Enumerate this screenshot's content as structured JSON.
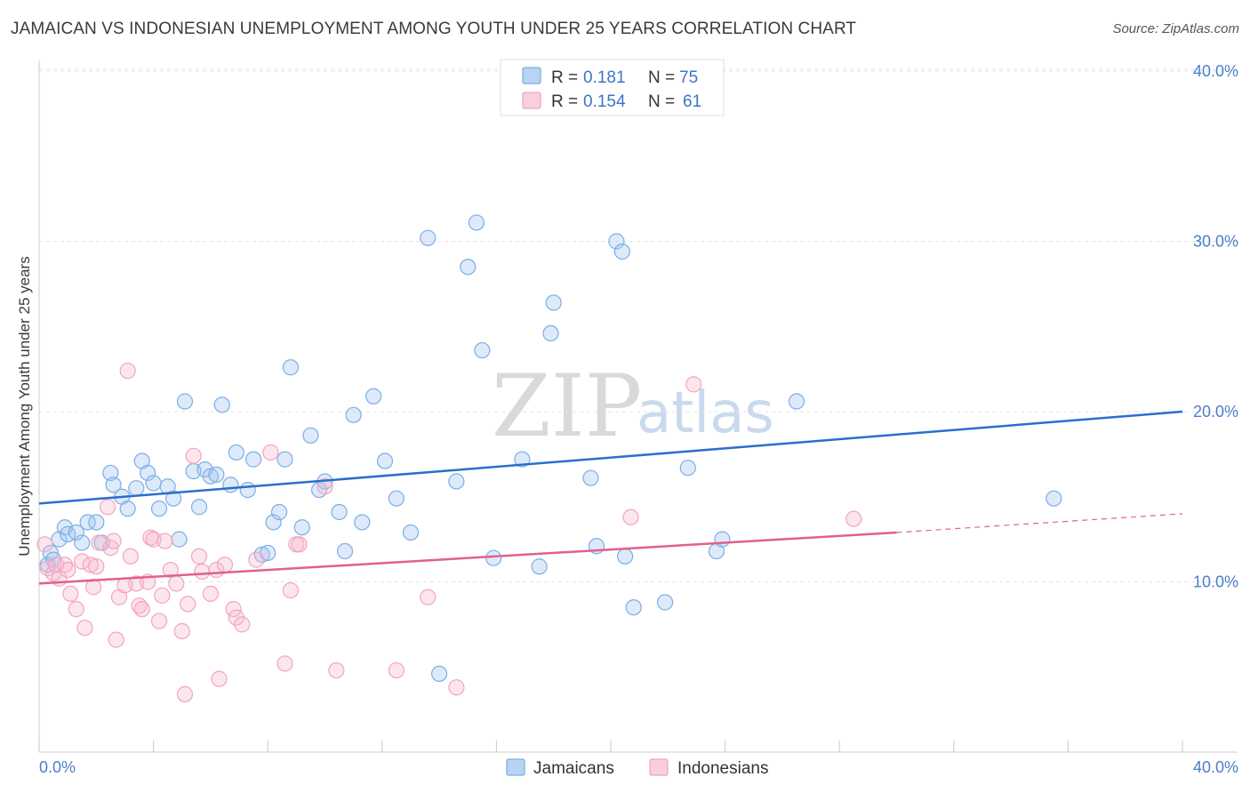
{
  "header": {
    "title": "JAMAICAN VS INDONESIAN UNEMPLOYMENT AMONG YOUTH UNDER 25 YEARS CORRELATION CHART",
    "source": "Source: ZipAtlas.com"
  },
  "watermark": {
    "zip": "ZIP",
    "atlas": "atlas"
  },
  "legend_top": {
    "rows": [
      {
        "r_label": "R =",
        "r_value": "0.181",
        "n_label": "N =",
        "n_value": "75"
      },
      {
        "r_label": "R =",
        "r_value": "0.154",
        "n_label": "N =",
        "n_value": "61"
      }
    ]
  },
  "legend_bottom": {
    "items": [
      "Jamaicans",
      "Indonesians"
    ]
  },
  "chart_data": {
    "type": "scatter",
    "title": "JAMAICAN VS INDONESIAN UNEMPLOYMENT AMONG YOUTH UNDER 25 YEARS CORRELATION CHART",
    "xlabel": "",
    "ylabel": "Unemployment Among Youth under 25 years",
    "xlim": [
      0,
      40
    ],
    "ylim": [
      0,
      41
    ],
    "x_tick_labels": [
      "0.0%",
      "40.0%"
    ],
    "y_ticks": [
      10,
      20,
      30,
      40
    ],
    "y_tick_labels": [
      "10.0%",
      "20.0%",
      "30.0%",
      "40.0%"
    ],
    "grid": true,
    "colors": {
      "jamaicans": "#7aaee8",
      "jamaicans_line": "#2a6fcc",
      "indonesians": "#f3a3bf",
      "indonesians_line": "#e0608f"
    },
    "series": [
      {
        "name": "Jamaicans",
        "r": 0.181,
        "n": 75,
        "trend": {
          "x0": 0,
          "y0": 14.6,
          "x1": 40,
          "y1": 20.0
        },
        "points": [
          [
            0.3,
            11.0
          ],
          [
            0.4,
            11.7
          ],
          [
            0.5,
            11.3
          ],
          [
            0.7,
            12.5
          ],
          [
            0.9,
            13.2
          ],
          [
            1.0,
            12.8
          ],
          [
            1.3,
            12.9
          ],
          [
            1.5,
            12.3
          ],
          [
            1.7,
            13.5
          ],
          [
            2.0,
            13.5
          ],
          [
            2.2,
            12.3
          ],
          [
            2.5,
            16.4
          ],
          [
            2.6,
            15.7
          ],
          [
            2.9,
            15.0
          ],
          [
            3.1,
            14.3
          ],
          [
            3.4,
            15.5
          ],
          [
            3.6,
            17.1
          ],
          [
            3.8,
            16.4
          ],
          [
            4.0,
            15.8
          ],
          [
            4.2,
            14.3
          ],
          [
            4.5,
            15.6
          ],
          [
            4.7,
            14.9
          ],
          [
            4.9,
            12.5
          ],
          [
            5.1,
            20.6
          ],
          [
            5.4,
            16.5
          ],
          [
            5.6,
            14.4
          ],
          [
            5.8,
            16.6
          ],
          [
            6.0,
            16.2
          ],
          [
            6.2,
            16.3
          ],
          [
            6.4,
            20.4
          ],
          [
            6.7,
            15.7
          ],
          [
            6.9,
            17.6
          ],
          [
            7.3,
            15.4
          ],
          [
            7.5,
            17.2
          ],
          [
            7.8,
            11.6
          ],
          [
            8.0,
            11.7
          ],
          [
            8.2,
            13.5
          ],
          [
            8.4,
            14.1
          ],
          [
            8.6,
            17.2
          ],
          [
            8.8,
            22.6
          ],
          [
            9.2,
            13.2
          ],
          [
            9.5,
            18.6
          ],
          [
            9.8,
            15.4
          ],
          [
            10.0,
            15.9
          ],
          [
            10.5,
            14.1
          ],
          [
            10.7,
            11.8
          ],
          [
            11.0,
            19.8
          ],
          [
            11.3,
            13.5
          ],
          [
            11.7,
            20.9
          ],
          [
            12.1,
            17.1
          ],
          [
            12.5,
            14.9
          ],
          [
            13.0,
            12.9
          ],
          [
            13.6,
            30.2
          ],
          [
            14.0,
            4.6
          ],
          [
            14.6,
            15.9
          ],
          [
            15.0,
            28.5
          ],
          [
            15.3,
            31.1
          ],
          [
            15.5,
            23.6
          ],
          [
            15.9,
            11.4
          ],
          [
            16.9,
            17.2
          ],
          [
            17.5,
            10.9
          ],
          [
            17.9,
            24.6
          ],
          [
            18.0,
            26.4
          ],
          [
            19.3,
            16.1
          ],
          [
            19.5,
            12.1
          ],
          [
            20.2,
            30.0
          ],
          [
            20.4,
            29.4
          ],
          [
            20.5,
            11.5
          ],
          [
            20.8,
            8.5
          ],
          [
            21.9,
            8.8
          ],
          [
            22.7,
            16.7
          ],
          [
            23.7,
            11.8
          ],
          [
            23.9,
            12.5
          ],
          [
            26.5,
            20.6
          ],
          [
            35.5,
            14.9
          ]
        ]
      },
      {
        "name": "Indonesians",
        "r": 0.154,
        "n": 61,
        "trend": {
          "x0": 0,
          "y0": 9.9,
          "x1": 30.0,
          "y1": 12.9
        },
        "trend_dashed": {
          "x0": 30.0,
          "y0": 12.9,
          "x1": 40,
          "y1": 14.0
        },
        "points": [
          [
            0.2,
            12.2
          ],
          [
            0.3,
            10.8
          ],
          [
            0.5,
            10.5
          ],
          [
            0.6,
            11.0
          ],
          [
            0.7,
            10.2
          ],
          [
            0.9,
            11.0
          ],
          [
            1.0,
            10.7
          ],
          [
            1.1,
            9.3
          ],
          [
            1.3,
            8.4
          ],
          [
            1.5,
            11.2
          ],
          [
            1.6,
            7.3
          ],
          [
            1.8,
            11.0
          ],
          [
            1.9,
            9.7
          ],
          [
            2.0,
            10.9
          ],
          [
            2.1,
            12.3
          ],
          [
            2.4,
            14.4
          ],
          [
            2.5,
            12.0
          ],
          [
            2.6,
            12.4
          ],
          [
            2.7,
            6.6
          ],
          [
            2.8,
            9.1
          ],
          [
            3.0,
            9.8
          ],
          [
            3.1,
            22.4
          ],
          [
            3.2,
            11.5
          ],
          [
            3.4,
            9.9
          ],
          [
            3.5,
            8.6
          ],
          [
            3.6,
            8.4
          ],
          [
            3.8,
            10.0
          ],
          [
            3.9,
            12.6
          ],
          [
            4.0,
            12.5
          ],
          [
            4.2,
            7.7
          ],
          [
            4.3,
            9.2
          ],
          [
            4.4,
            12.4
          ],
          [
            4.6,
            10.7
          ],
          [
            4.8,
            9.9
          ],
          [
            5.0,
            7.1
          ],
          [
            5.1,
            3.4
          ],
          [
            5.2,
            8.7
          ],
          [
            5.4,
            17.4
          ],
          [
            5.6,
            11.5
          ],
          [
            5.7,
            10.6
          ],
          [
            6.0,
            9.3
          ],
          [
            6.2,
            10.7
          ],
          [
            6.3,
            4.3
          ],
          [
            6.5,
            11.0
          ],
          [
            6.8,
            8.4
          ],
          [
            6.9,
            7.9
          ],
          [
            7.1,
            7.5
          ],
          [
            7.6,
            11.3
          ],
          [
            8.1,
            17.6
          ],
          [
            8.6,
            5.2
          ],
          [
            8.8,
            9.5
          ],
          [
            9.0,
            12.2
          ],
          [
            9.1,
            12.2
          ],
          [
            10.0,
            15.6
          ],
          [
            10.4,
            4.8
          ],
          [
            12.5,
            4.8
          ],
          [
            13.6,
            9.1
          ],
          [
            14.6,
            3.8
          ],
          [
            20.7,
            13.8
          ],
          [
            22.9,
            21.6
          ],
          [
            28.5,
            13.7
          ]
        ]
      }
    ]
  }
}
